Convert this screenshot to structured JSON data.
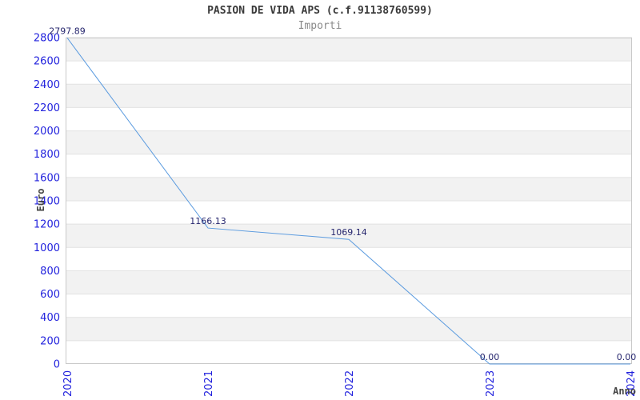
{
  "header": {
    "title": "PASION DE VIDA APS (c.f.91138760599)",
    "subtitle": "Importi"
  },
  "colors": {
    "band_fill": "#F2F2F2",
    "grid_line": "#E2E2E2",
    "plot_border": "#C9C9C9",
    "series_line": "#5B9BDF",
    "tick_label": "#2222DD",
    "data_label": "#26266E",
    "title_text": "#3A3A3A",
    "subtitle_text": "#8A8A8A",
    "axis_title_text": "#444444"
  },
  "chart_data": {
    "type": "line",
    "title": "PASION DE VIDA APS (c.f.91138760599)",
    "subtitle": "Importi",
    "xlabel": "Anno",
    "ylabel": "Euro",
    "categories": [
      "2020",
      "2021",
      "2022",
      "2023",
      "2024"
    ],
    "series": [
      {
        "name": "Importi",
        "values": [
          2797.89,
          1166.13,
          1069.14,
          0.0,
          0.0
        ],
        "data_labels": [
          "2797.89",
          "1166.13",
          "1069.14",
          "0.00",
          "0.00"
        ]
      }
    ],
    "ylim": [
      0,
      2800
    ],
    "ytick_step": 200,
    "yticks": [
      "0",
      "200",
      "400",
      "600",
      "800",
      "1000",
      "1200",
      "1400",
      "1600",
      "1800",
      "2000",
      "2200",
      "2400",
      "2600",
      "2800"
    ],
    "grid": "horizontal gridlines with alternating gray bands (top band gray)",
    "legend_position": "none",
    "markers": "none",
    "x_tick_rotation_deg": 90,
    "y_tick_rotation_deg": 0
  }
}
